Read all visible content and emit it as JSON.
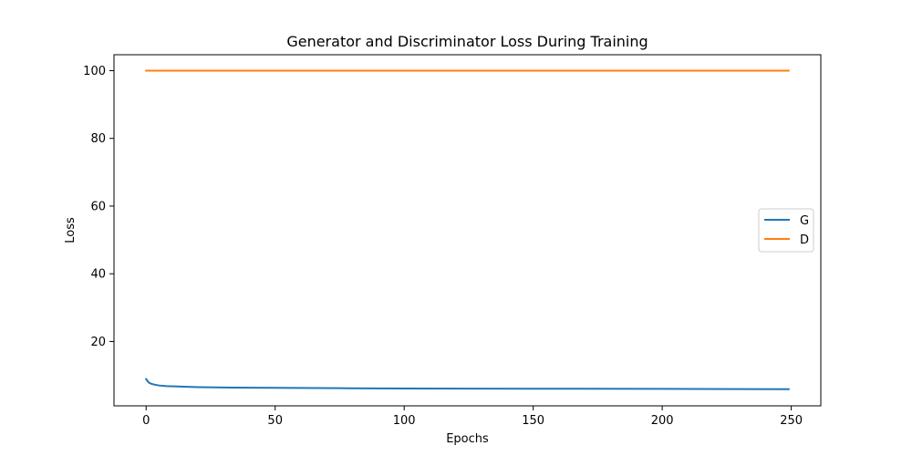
{
  "chart_data": {
    "type": "line",
    "title": "Generator and Discriminator Loss During Training",
    "xlabel": "Epochs",
    "ylabel": "Loss",
    "xlim": [
      -12.45,
      261.45
    ],
    "ylim": [
      0.99,
      104.71
    ],
    "xticks": [
      0,
      50,
      100,
      150,
      200,
      250
    ],
    "yticks": [
      20,
      40,
      60,
      80,
      100
    ],
    "grid": false,
    "legend_position": "center-right",
    "series": [
      {
        "name": "G",
        "color": "#1f77b4",
        "x": [
          0,
          1,
          2,
          3,
          5,
          8,
          12,
          20,
          30,
          50,
          75,
          100,
          150,
          200,
          249
        ],
        "values": [
          8.9,
          7.9,
          7.5,
          7.3,
          7.0,
          6.8,
          6.7,
          6.5,
          6.4,
          6.3,
          6.2,
          6.1,
          6.05,
          6.0,
          5.9
        ]
      },
      {
        "name": "D",
        "color": "#ff7f0e",
        "x": [
          0,
          249
        ],
        "values": [
          100,
          100
        ]
      }
    ]
  }
}
